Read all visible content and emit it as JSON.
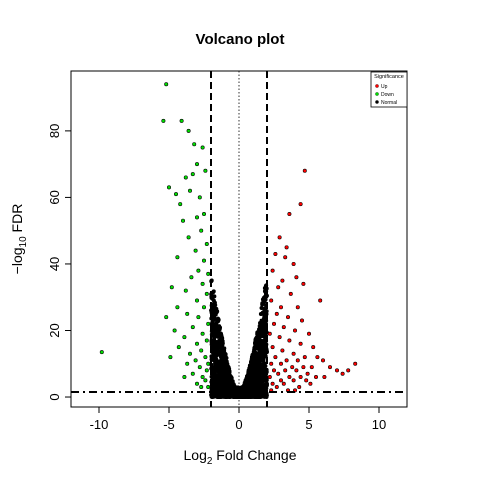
{
  "chart_data": {
    "type": "scatter",
    "title": "Volcano plot",
    "xlabel": {
      "prefix": "Log",
      "sub": "2",
      "suffix": " Fold Change"
    },
    "ylabel": {
      "prefix": "−log",
      "sub": "10",
      "suffix": " FDR"
    },
    "xlim": [
      -12,
      12
    ],
    "ylim": [
      -3,
      98
    ],
    "x_ticks": [
      -10,
      -5,
      0,
      5,
      10
    ],
    "y_ticks": [
      0,
      20,
      40,
      60,
      80
    ],
    "thresholds": {
      "fold_change": [
        -2,
        2
      ],
      "center": 0,
      "fdr_line": 1.5
    },
    "legend": {
      "position": "top-right",
      "title": "Significance",
      "entries": [
        {
          "label": "Up",
          "color": "#ff0000"
        },
        {
          "label": "Down",
          "color": "#00dd00"
        },
        {
          "label": "Normal",
          "color": "#000000"
        }
      ]
    },
    "series": [
      {
        "name": "Up",
        "color": "#ff0000",
        "points": [
          [
            4.7,
            68
          ],
          [
            4.4,
            58
          ],
          [
            3.6,
            55
          ],
          [
            2.9,
            48
          ],
          [
            3.4,
            45
          ],
          [
            2.6,
            43
          ],
          [
            3.3,
            42
          ],
          [
            3.9,
            40
          ],
          [
            2.4,
            38
          ],
          [
            4.1,
            36
          ],
          [
            3.1,
            35
          ],
          [
            4.6,
            34
          ],
          [
            2.8,
            33
          ],
          [
            3.7,
            31
          ],
          [
            5.8,
            29
          ],
          [
            2.3,
            29
          ],
          [
            3.0,
            27
          ],
          [
            4.2,
            27
          ],
          [
            2.7,
            25
          ],
          [
            3.5,
            24
          ],
          [
            4.5,
            23
          ],
          [
            2.5,
            22
          ],
          [
            3.2,
            21
          ],
          [
            4.0,
            20
          ],
          [
            5.0,
            19
          ],
          [
            2.2,
            19
          ],
          [
            2.9,
            18
          ],
          [
            3.6,
            17
          ],
          [
            4.4,
            16
          ],
          [
            5.3,
            15
          ],
          [
            2.4,
            15
          ],
          [
            3.1,
            14
          ],
          [
            3.9,
            13
          ],
          [
            4.7,
            12
          ],
          [
            5.6,
            12
          ],
          [
            2.6,
            12
          ],
          [
            3.4,
            11
          ],
          [
            4.2,
            11
          ],
          [
            6.0,
            11
          ],
          [
            2.3,
            10
          ],
          [
            3.0,
            10
          ],
          [
            3.8,
            9
          ],
          [
            4.6,
            9
          ],
          [
            5.2,
            9
          ],
          [
            6.5,
            9
          ],
          [
            2.5,
            8
          ],
          [
            3.3,
            8
          ],
          [
            4.1,
            8
          ],
          [
            4.9,
            7
          ],
          [
            7.0,
            8
          ],
          [
            2.8,
            7
          ],
          [
            3.6,
            6
          ],
          [
            4.4,
            6
          ],
          [
            5.5,
            6
          ],
          [
            7.4,
            7
          ],
          [
            8.3,
            10
          ],
          [
            2.2,
            6
          ],
          [
            3.0,
            5
          ],
          [
            3.9,
            5
          ],
          [
            4.8,
            5
          ],
          [
            6.1,
            6
          ],
          [
            7.8,
            8
          ],
          [
            2.4,
            4
          ],
          [
            3.2,
            4
          ],
          [
            4.3,
            3
          ],
          [
            5.1,
            4
          ],
          [
            2.7,
            3
          ],
          [
            3.5,
            2
          ],
          [
            4.0,
            2
          ],
          [
            2.3,
            2
          ]
        ]
      },
      {
        "name": "Down",
        "color": "#00dd00",
        "points": [
          [
            -5.2,
            94
          ],
          [
            -5.4,
            83
          ],
          [
            -4.1,
            83
          ],
          [
            -3.6,
            80
          ],
          [
            -3.2,
            76
          ],
          [
            -2.6,
            75
          ],
          [
            -3.0,
            70
          ],
          [
            -2.4,
            68
          ],
          [
            -3.3,
            67
          ],
          [
            -3.8,
            66
          ],
          [
            -3.5,
            62
          ],
          [
            -2.8,
            60
          ],
          [
            -5.0,
            63
          ],
          [
            -4.5,
            61
          ],
          [
            -4.2,
            58
          ],
          [
            -2.5,
            55
          ],
          [
            -3.0,
            54
          ],
          [
            -4.0,
            53
          ],
          [
            -2.7,
            50
          ],
          [
            -3.6,
            48
          ],
          [
            -2.3,
            46
          ],
          [
            -3.1,
            44
          ],
          [
            -2.5,
            41
          ],
          [
            -4.4,
            42
          ],
          [
            -2.9,
            38
          ],
          [
            -2.2,
            37
          ],
          [
            -3.4,
            36
          ],
          [
            -2.6,
            34
          ],
          [
            -4.8,
            33
          ],
          [
            -3.8,
            32
          ],
          [
            -2.3,
            31
          ],
          [
            -3.0,
            29
          ],
          [
            -4.4,
            27
          ],
          [
            -2.5,
            27
          ],
          [
            -3.7,
            25
          ],
          [
            -2.9,
            24
          ],
          [
            -5.2,
            24
          ],
          [
            -2.2,
            22
          ],
          [
            -3.3,
            21
          ],
          [
            -4.6,
            20
          ],
          [
            -2.6,
            19
          ],
          [
            -3.9,
            18
          ],
          [
            -2.3,
            17
          ],
          [
            -3.0,
            16
          ],
          [
            -4.3,
            15
          ],
          [
            -2.7,
            14
          ],
          [
            -3.5,
            13
          ],
          [
            -2.4,
            12
          ],
          [
            -4.9,
            12
          ],
          [
            -3.1,
            11
          ],
          [
            -2.2,
            10
          ],
          [
            -3.7,
            10
          ],
          [
            -2.8,
            9
          ],
          [
            -2.3,
            8
          ],
          [
            -3.3,
            7
          ],
          [
            -2.6,
            6
          ],
          [
            -3.9,
            6
          ],
          [
            -2.4,
            5
          ],
          [
            -3.0,
            4
          ],
          [
            -2.2,
            3
          ],
          [
            -2.7,
            3
          ],
          [
            -9.8,
            13.5
          ]
        ]
      },
      {
        "name": "Normal",
        "color": "#000000",
        "points": []
      }
    ]
  }
}
